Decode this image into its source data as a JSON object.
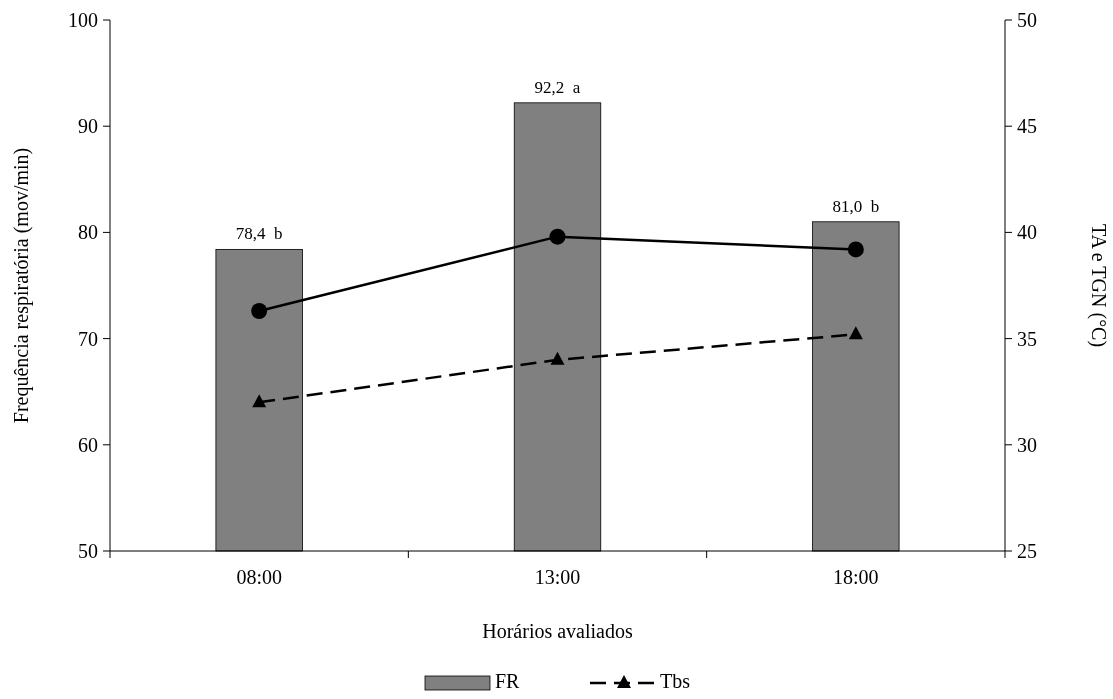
{
  "chart_data": {
    "type": "bar",
    "xlabel": "Horários avaliados",
    "ylabel": "Frequência respiratória (mov/min)",
    "y2label": "TA e TGN (°C)",
    "categories": [
      "08:00",
      "13:00",
      "18:00"
    ],
    "series": [
      {
        "name": "FR",
        "color": "#808080",
        "values": [
          78.4,
          92.2,
          81.0
        ],
        "value_labels": [
          "78,4  b",
          "92,2  a",
          "81,0  b"
        ]
      },
      {
        "type": "line",
        "axis": "y2",
        "color": "#000000",
        "marker": "circle",
        "line_style": "solid",
        "values": [
          36.3,
          39.8,
          39.2
        ]
      },
      {
        "name": "Tbs",
        "type": "line",
        "axis": "y2",
        "color": "#000000",
        "marker": "triangle",
        "line_style": "dashed",
        "values": [
          32.0,
          34.0,
          35.2
        ]
      }
    ],
    "ylim": [
      50,
      100
    ],
    "yticks": [
      50,
      60,
      70,
      80,
      90,
      100
    ],
    "y2lim": [
      25,
      50
    ],
    "y2ticks": [
      25,
      30,
      35,
      40,
      45,
      50
    ],
    "legend": "bottom",
    "grid": false
  }
}
